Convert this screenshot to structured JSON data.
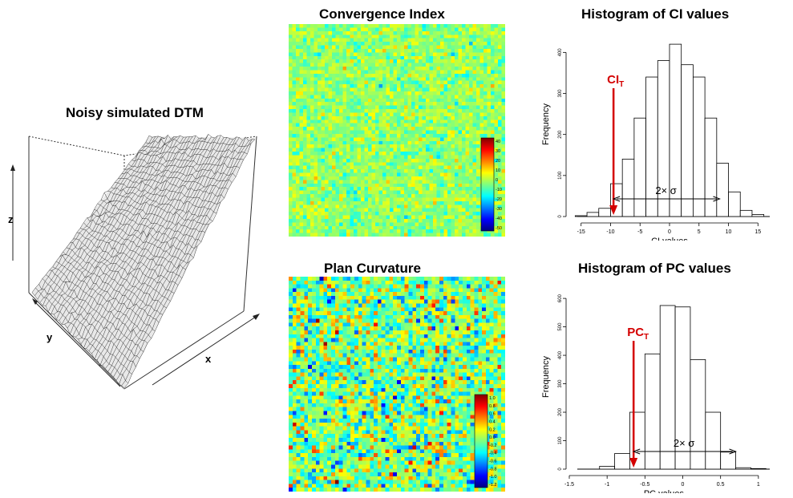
{
  "dtm": {
    "title": "Noisy simulated DTM",
    "axis_x": "x",
    "axis_y": "y",
    "axis_z": "z"
  },
  "ci_map": {
    "title": "Convergence Index",
    "colorbar_ticks": [
      "40",
      "30",
      "20",
      "10",
      "0",
      "-10",
      "-20",
      "-30",
      "-40",
      "-50"
    ]
  },
  "pc_map": {
    "title": "Plan Curvature",
    "colorbar_ticks": [
      "1.0",
      "0.8",
      "0.6",
      "0.4",
      "0.2",
      "0.0",
      "-0.2",
      "-0.4",
      "-0.6",
      "-0.8",
      "-1.0",
      "-1.2"
    ]
  },
  "colors": {
    "threshold_arrow": "#d40000",
    "bar_edge": "#000000",
    "palette": [
      "#00007f",
      "#0000ff",
      "#007fff",
      "#00ffff",
      "#7fff7f",
      "#ffff00",
      "#ff7f00",
      "#ff0000",
      "#7f0000"
    ]
  },
  "chart_data": [
    {
      "type": "bar",
      "title": "Histogram of CI values",
      "xlabel": "CI values",
      "ylabel": "Frequency",
      "xlim": [
        -17,
        17
      ],
      "ylim": [
        0,
        430
      ],
      "x_ticks": [
        -15,
        -10,
        -5,
        0,
        5,
        10,
        15
      ],
      "y_ticks": [
        0,
        100,
        200,
        300,
        400
      ],
      "bin_edges": [
        -16,
        -14,
        -12,
        -10,
        -8,
        -6,
        -4,
        -2,
        0,
        2,
        4,
        6,
        8,
        10,
        12,
        14,
        16
      ],
      "values": [
        2,
        10,
        20,
        80,
        140,
        240,
        340,
        380,
        420,
        370,
        340,
        240,
        130,
        60,
        15,
        5
      ],
      "threshold_label": "CI",
      "threshold_subscript": "T",
      "threshold_x": -9.5,
      "sigma_label": "2× σ",
      "sigma_span": [
        -9.5,
        8.5
      ]
    },
    {
      "type": "bar",
      "title": "Histogram of PC values",
      "xlabel": "PC values",
      "ylabel": "Frequency",
      "xlim": [
        -1.5,
        1.15
      ],
      "ylim": [
        0,
        620
      ],
      "x_ticks": [
        -1.5,
        -1.0,
        -0.5,
        0.0,
        0.5,
        1.0
      ],
      "y_ticks": [
        0,
        100,
        200,
        300,
        400,
        500,
        600
      ],
      "bin_edges": [
        -1.1,
        -0.9,
        -0.7,
        -0.5,
        -0.3,
        -0.1,
        0.1,
        0.3,
        0.5,
        0.7,
        0.9,
        1.1
      ],
      "values": [
        10,
        55,
        200,
        405,
        575,
        570,
        385,
        200,
        60,
        5,
        2
      ],
      "threshold_label": "PC",
      "threshold_subscript": "T",
      "threshold_x": -0.65,
      "sigma_label": "2× σ",
      "sigma_span": [
        -0.65,
        0.7
      ]
    }
  ]
}
